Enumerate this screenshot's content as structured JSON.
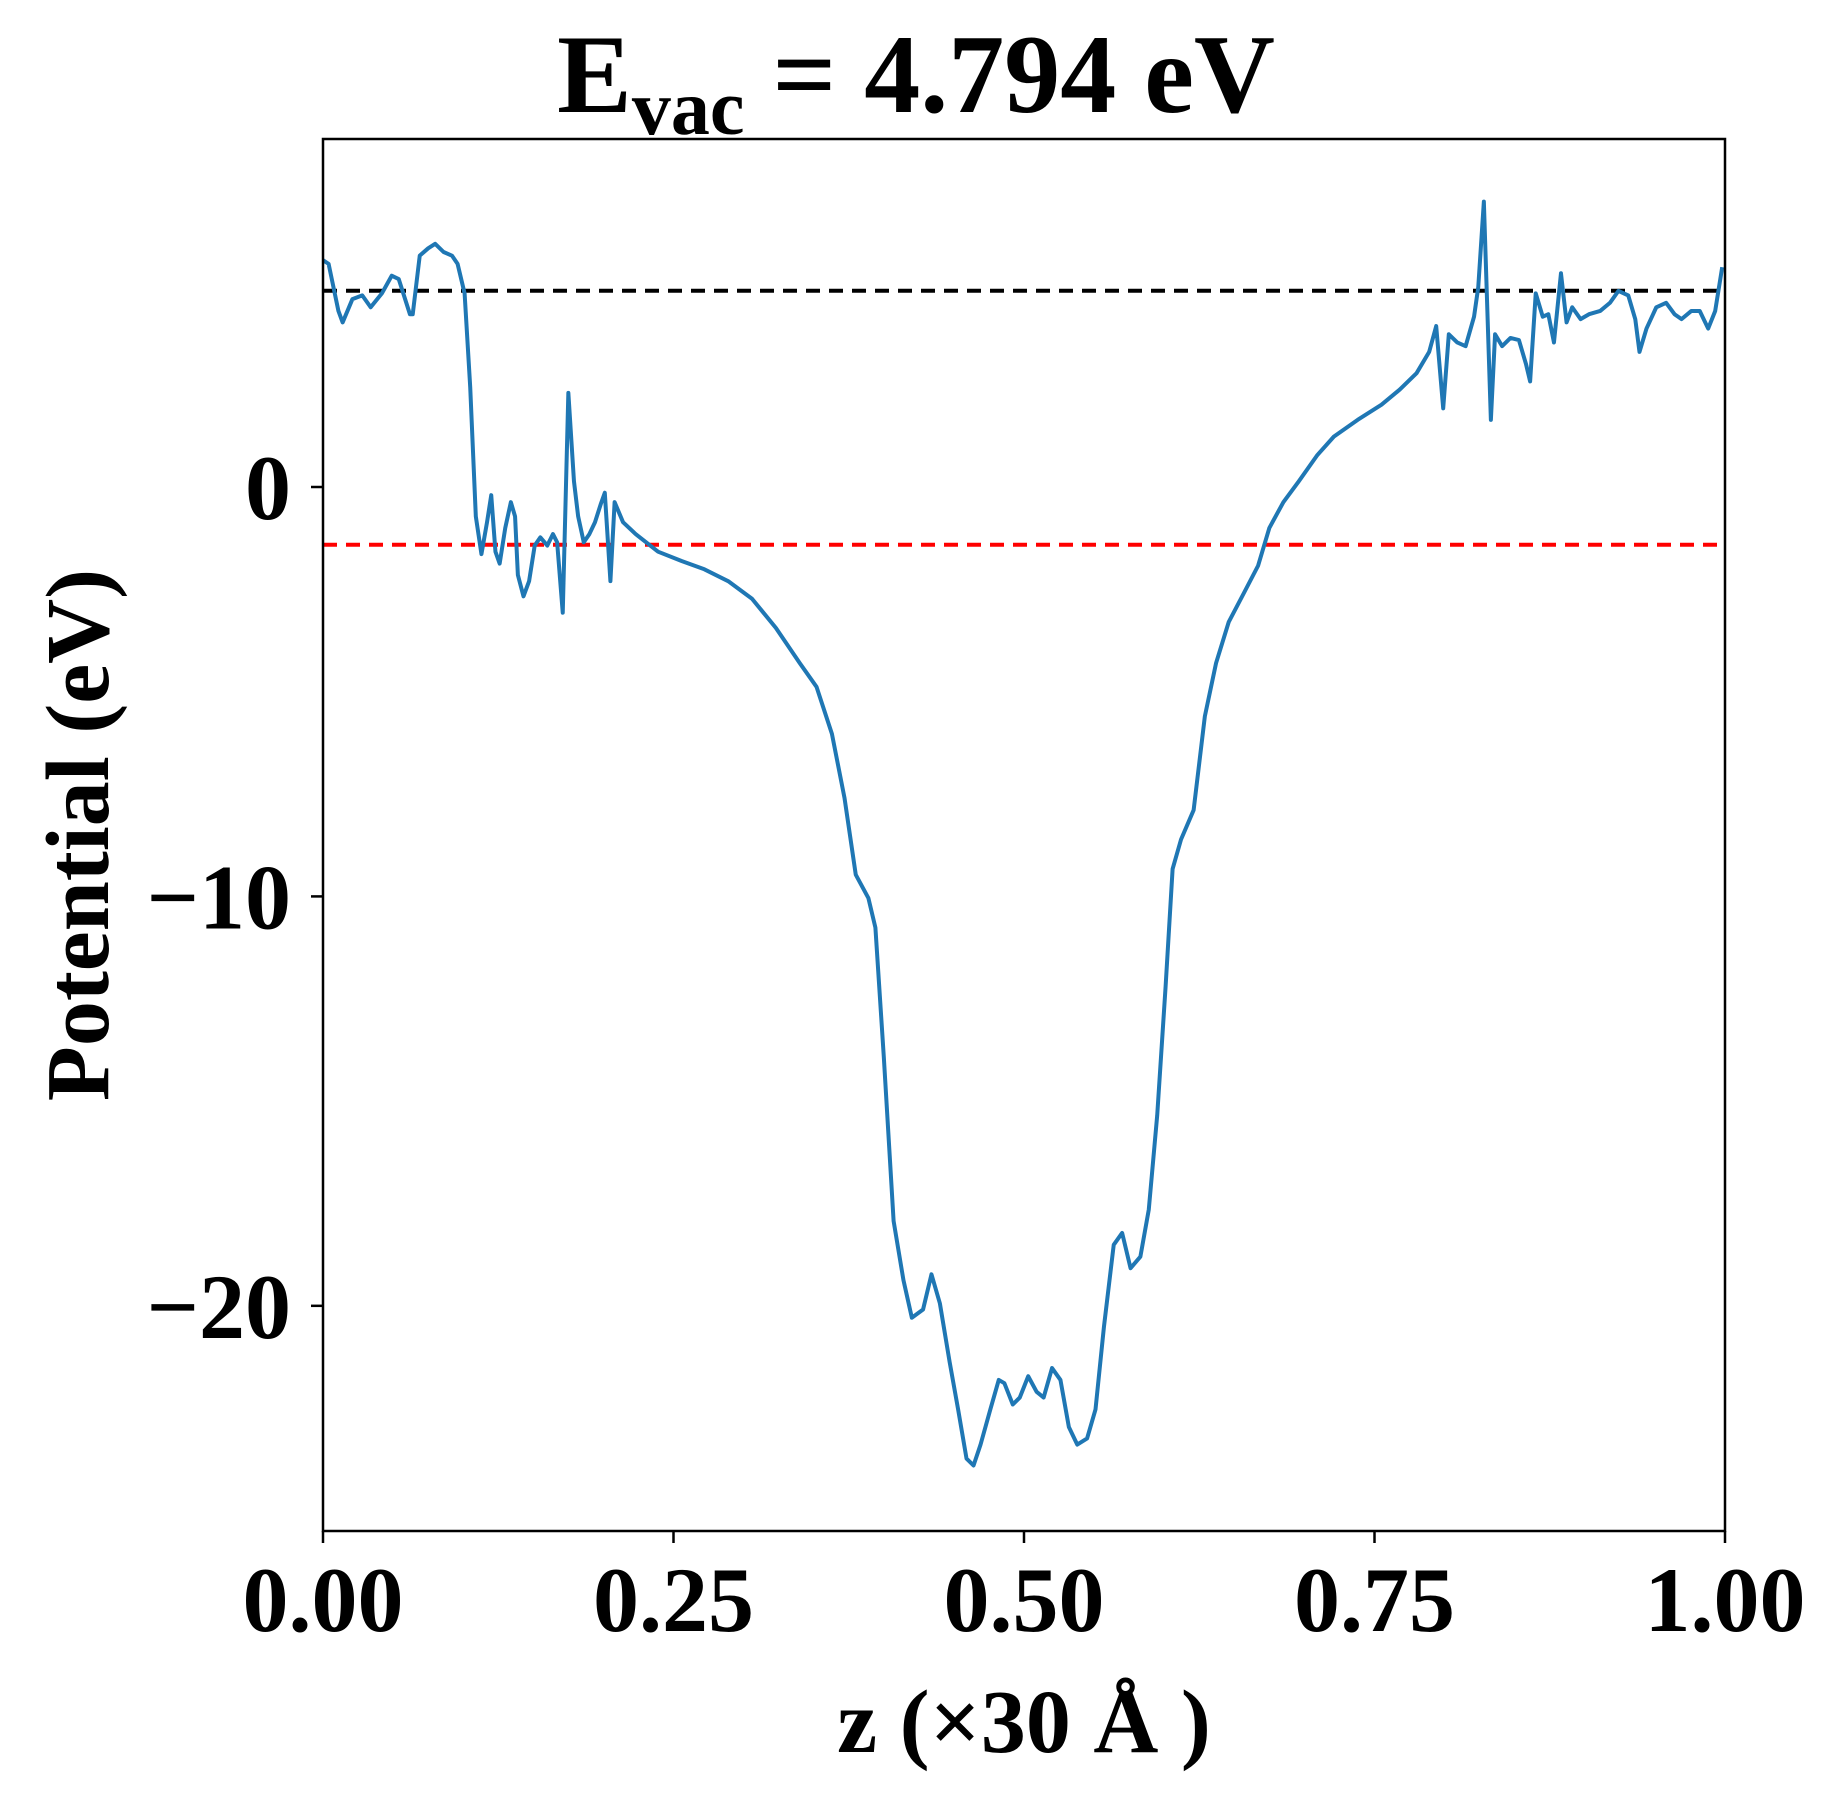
{
  "chart_data": {
    "type": "line",
    "title": {
      "main": "E",
      "sub": "vac",
      "rest": " = 4.794 eV"
    },
    "xlabel": "z (×30 Å )",
    "ylabel": "Potential (eV)",
    "xlim": [
      0,
      1
    ],
    "ylim": [
      -25.5,
      8.5
    ],
    "xticks": [
      {
        "value": 0,
        "label": "0.00"
      },
      {
        "value": 0.25,
        "label": "0.25"
      },
      {
        "value": 0.5,
        "label": "0.50"
      },
      {
        "value": 0.75,
        "label": "0.75"
      },
      {
        "value": 1,
        "label": "1.00"
      }
    ],
    "yticks": [
      0,
      {
        "value": -10,
        "label": "−10"
      },
      {
        "value": -20,
        "label": "−20"
      }
    ],
    "hlines": [
      {
        "value": 4.794,
        "color": "#000000"
      },
      {
        "value": -1.41,
        "color": "#ff0000"
      }
    ],
    "series": [
      {
        "color": "#1f77b4",
        "x": [
          0,
          0.004,
          0.011,
          0.014,
          0.021,
          0.028,
          0.034,
          0.042,
          0.049,
          0.054,
          0.062,
          0.064,
          0.069,
          0.075,
          0.08,
          0.086,
          0.092,
          0.096,
          0.101,
          0.105,
          0.109,
          0.113,
          0.117,
          0.12,
          0.123,
          0.126,
          0.13,
          0.134,
          0.137,
          0.139,
          0.143,
          0.147,
          0.151,
          0.155,
          0.16,
          0.164,
          0.167,
          0.171,
          0.175,
          0.179,
          0.182,
          0.186,
          0.19,
          0.194,
          0.198,
          0.201,
          0.205,
          0.208,
          0.214,
          0.223,
          0.239,
          0.256,
          0.272,
          0.289,
          0.306,
          0.323,
          0.34,
          0.352,
          0.363,
          0.372,
          0.38,
          0.389,
          0.394,
          0.4,
          0.407,
          0.414,
          0.42,
          0.428,
          0.434,
          0.44,
          0.447,
          0.453,
          0.459,
          0.464,
          0.469,
          0.476,
          0.482,
          0.486,
          0.492,
          0.497,
          0.503,
          0.509,
          0.514,
          0.52,
          0.526,
          0.532,
          0.538,
          0.545,
          0.551,
          0.557,
          0.564,
          0.57,
          0.576,
          0.583,
          0.589,
          0.595,
          0.601,
          0.606,
          0.612,
          0.621,
          0.629,
          0.637,
          0.646,
          0.657,
          0.667,
          0.675,
          0.685,
          0.696,
          0.709,
          0.721,
          0.738,
          0.755,
          0.768,
          0.78,
          0.789,
          0.794,
          0.799,
          0.803,
          0.809,
          0.815,
          0.821,
          0.824,
          0.828,
          0.833,
          0.836,
          0.841,
          0.847,
          0.853,
          0.858,
          0.861,
          0.865,
          0.87,
          0.874,
          0.878,
          0.883,
          0.887,
          0.891,
          0.897,
          0.903,
          0.911,
          0.918,
          0.924,
          0.931,
          0.936,
          0.939,
          0.944,
          0.951,
          0.958,
          0.964,
          0.969,
          0.976,
          0.982,
          0.988,
          0.993,
          0.998
        ],
        "values": [
          5.54,
          5.45,
          4.3,
          4.02,
          4.59,
          4.68,
          4.39,
          4.73,
          5.16,
          5.08,
          4.22,
          4.22,
          5.65,
          5.83,
          5.94,
          5.74,
          5.65,
          5.45,
          4.73,
          2.44,
          -0.72,
          -1.64,
          -0.86,
          -0.2,
          -1.58,
          -1.87,
          -1.0,
          -0.37,
          -0.72,
          -2.15,
          -2.67,
          -2.3,
          -1.43,
          -1.23,
          -1.43,
          -1.15,
          -1.35,
          -3.07,
          2.3,
          0.14,
          -0.72,
          -1.35,
          -1.15,
          -0.86,
          -0.43,
          -0.14,
          -2.3,
          -0.37,
          -0.86,
          -1.15,
          -1.58,
          -1.81,
          -2.01,
          -2.3,
          -2.73,
          -3.44,
          -4.3,
          -4.88,
          -6.03,
          -7.6,
          -9.47,
          -10.04,
          -10.76,
          -13.92,
          -17.93,
          -19.37,
          -20.29,
          -20.09,
          -19.23,
          -19.94,
          -21.38,
          -22.53,
          -23.73,
          -23.9,
          -23.39,
          -22.53,
          -21.81,
          -21.89,
          -22.41,
          -22.24,
          -21.72,
          -22.1,
          -22.24,
          -21.52,
          -21.81,
          -22.96,
          -23.39,
          -23.24,
          -22.53,
          -20.52,
          -18.51,
          -18.22,
          -19.08,
          -18.8,
          -17.65,
          -15.35,
          -12.2,
          -9.33,
          -8.61,
          -7.89,
          -5.6,
          -4.3,
          -3.3,
          -2.58,
          -1.92,
          -1.0,
          -0.37,
          0.14,
          0.77,
          1.23,
          1.64,
          2.01,
          2.38,
          2.78,
          3.3,
          3.93,
          1.92,
          3.73,
          3.53,
          3.44,
          4.16,
          4.88,
          6.97,
          1.64,
          3.73,
          3.44,
          3.64,
          3.59,
          3.01,
          2.58,
          4.73,
          4.16,
          4.22,
          3.53,
          5.22,
          4.02,
          4.39,
          4.1,
          4.22,
          4.3,
          4.5,
          4.79,
          4.68,
          4.1,
          3.3,
          3.87,
          4.39,
          4.5,
          4.22,
          4.1,
          4.3,
          4.3,
          3.87,
          4.3,
          5.37
        ]
      }
    ]
  }
}
